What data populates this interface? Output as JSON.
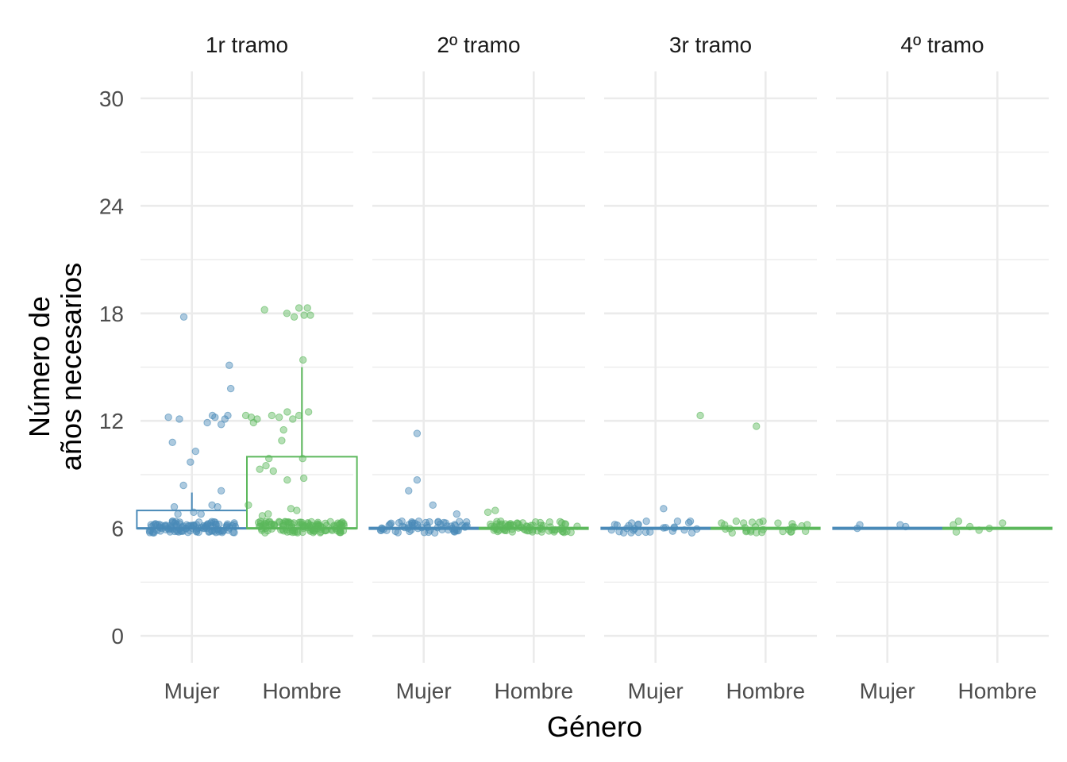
{
  "chart_data": {
    "type": "boxplot-jitter",
    "xlabel": "Género",
    "ylabel_lines": [
      "Número de",
      "años necesarios"
    ],
    "ylim": [
      -1.5,
      31.5
    ],
    "y_ticks": [
      0,
      6,
      12,
      18,
      24,
      30
    ],
    "y_minor": [
      3,
      9,
      15,
      21,
      27
    ],
    "categories": [
      "Mujer",
      "Hombre"
    ],
    "colors": {
      "Mujer": "#4a8ab8",
      "Hombre": "#5cb85c"
    },
    "panels": [
      {
        "label": "1r tramo",
        "boxes": [
          {
            "group": "Mujer",
            "q1": 6,
            "median": 6,
            "q3": 7,
            "lower": 6,
            "upper": 8
          },
          {
            "group": "Hombre",
            "q1": 6,
            "median": 6,
            "q3": 10,
            "lower": 6,
            "upper": 15
          }
        ],
        "points": {
          "Mujer": [
            [
              1.36,
              12.2
            ],
            [
              1.47,
              10.8
            ],
            [
              1.66,
              12.1
            ],
            [
              1.78,
              17.8
            ],
            [
              1.77,
              8.4
            ],
            [
              1.96,
              9.7
            ],
            [
              2.1,
              10.3
            ],
            [
              2.42,
              11.9
            ],
            [
              2.56,
              12.3
            ],
            [
              2.63,
              12.2
            ],
            [
              2.9,
              12.1
            ],
            [
              3.02,
              15.1
            ],
            [
              3.06,
              13.8
            ],
            [
              2.8,
              8.1
            ],
            [
              2.7,
              7.2
            ],
            [
              2.55,
              7.3
            ],
            [
              2.25,
              6.8
            ],
            [
              2.05,
              6.9
            ],
            [
              1.62,
              6.8
            ],
            [
              1.52,
              7.2
            ],
            [
              2.98,
              12.3
            ],
            [
              2.8,
              11.8
            ],
            [
              1.54,
              6.3
            ],
            [
              1.86,
              6.2
            ]
          ],
          "Hombre": [
            [
              3.47,
              12.3
            ],
            [
              3.62,
              12.2
            ],
            [
              3.68,
              11.9
            ],
            [
              3.78,
              12.1
            ],
            [
              4.18,
              12.3
            ],
            [
              4.5,
              11.5
            ],
            [
              4.38,
              12.2
            ],
            [
              4.6,
              12.5
            ],
            [
              4.75,
              12.1
            ],
            [
              4.92,
              12.3
            ],
            [
              5.18,
              12.5
            ],
            [
              4.45,
              10.9
            ],
            [
              3.98,
              18.2
            ],
            [
              4.59,
              18.0
            ],
            [
              4.79,
              17.8
            ],
            [
              4.92,
              18.3
            ],
            [
              5.06,
              17.9
            ],
            [
              5.15,
              18.3
            ],
            [
              5.23,
              17.9
            ],
            [
              5.03,
              15.4
            ],
            [
              4.1,
              9.9
            ],
            [
              3.85,
              9.3
            ],
            [
              4.02,
              9.5
            ],
            [
              4.22,
              9.2
            ],
            [
              4.6,
              8.7
            ],
            [
              5.05,
              8.8
            ],
            [
              5.02,
              9.9
            ],
            [
              3.54,
              7.3
            ],
            [
              3.92,
              6.7
            ],
            [
              4.86,
              7.0
            ],
            [
              4.08,
              6.8
            ],
            [
              4.7,
              7.1
            ]
          ]
        },
        "dense_bands": {
          "Mujer": {
            "n": 110,
            "seed": 11
          },
          "Hombre": {
            "n": 120,
            "seed": 29
          }
        }
      },
      {
        "label": "2º tramo",
        "boxes": [
          {
            "group": "Mujer",
            "q1": 6,
            "median": 6,
            "q3": 6,
            "lower": 6,
            "upper": 6
          },
          {
            "group": "Hombre",
            "q1": 6,
            "median": 6,
            "q3": 6,
            "lower": 6,
            "upper": 6
          }
        ],
        "points": {
          "Mujer": [
            [
              1.82,
              11.3
            ],
            [
              1.82,
              8.7
            ],
            [
              1.59,
              8.1
            ],
            [
              2.25,
              7.3
            ],
            [
              2.9,
              6.8
            ],
            [
              2.6,
              6.3
            ]
          ],
          "Hombre": [
            [
              3.75,
              6.9
            ],
            [
              3.95,
              7.0
            ],
            [
              4.1,
              6.4
            ],
            [
              4.55,
              6.3
            ]
          ]
        },
        "dense_bands": {
          "Mujer": {
            "n": 60,
            "seed": 41
          },
          "Hombre": {
            "n": 70,
            "seed": 53
          }
        }
      },
      {
        "label": "3r tramo",
        "boxes": [
          {
            "group": "Mujer",
            "q1": 6,
            "median": 6,
            "q3": 6,
            "lower": 6,
            "upper": 6
          },
          {
            "group": "Hombre",
            "q1": 6,
            "median": 6,
            "q3": 6,
            "lower": 6,
            "upper": 6
          }
        ],
        "points": {
          "Mujer": [
            [
              2.22,
              7.1
            ],
            [
              1.75,
              6.4
            ],
            [
              2.6,
              6.4
            ],
            [
              2.95,
              6.4
            ],
            [
              1.35,
              6.3
            ],
            [
              1.4,
              5.9
            ],
            [
              1.85,
              5.8
            ]
          ],
          "Hombre": [
            [
              3.22,
              12.3
            ],
            [
              4.75,
              11.7
            ],
            [
              4.93,
              6.4
            ],
            [
              4.4,
              6.3
            ],
            [
              3.8,
              6.3
            ],
            [
              4.2,
              6.4
            ]
          ]
        },
        "dense_bands": {
          "Mujer": {
            "n": 22,
            "seed": 67
          },
          "Hombre": {
            "n": 26,
            "seed": 79
          }
        }
      },
      {
        "label": "4º tramo",
        "boxes": [
          {
            "group": "Mujer",
            "q1": 6,
            "median": 6,
            "q3": 6,
            "lower": 6,
            "upper": 6
          },
          {
            "group": "Hombre",
            "q1": 6,
            "median": 6,
            "q3": 6,
            "lower": 6,
            "upper": 6
          }
        ],
        "points": {
          "Mujer": [
            [
              1.25,
              6.2
            ],
            [
              1.18,
              6.0
            ],
            [
              2.35,
              6.2
            ],
            [
              2.5,
              6.1
            ]
          ],
          "Hombre": [
            [
              3.8,
              6.2
            ],
            [
              3.94,
              6.4
            ],
            [
              3.88,
              5.8
            ],
            [
              4.25,
              6.1
            ],
            [
              4.5,
              5.9
            ],
            [
              4.78,
              6.0
            ],
            [
              5.14,
              6.3
            ]
          ]
        },
        "dense_bands": {
          "Mujer": {
            "n": 0,
            "seed": 83
          },
          "Hombre": {
            "n": 0,
            "seed": 97
          }
        }
      }
    ]
  }
}
